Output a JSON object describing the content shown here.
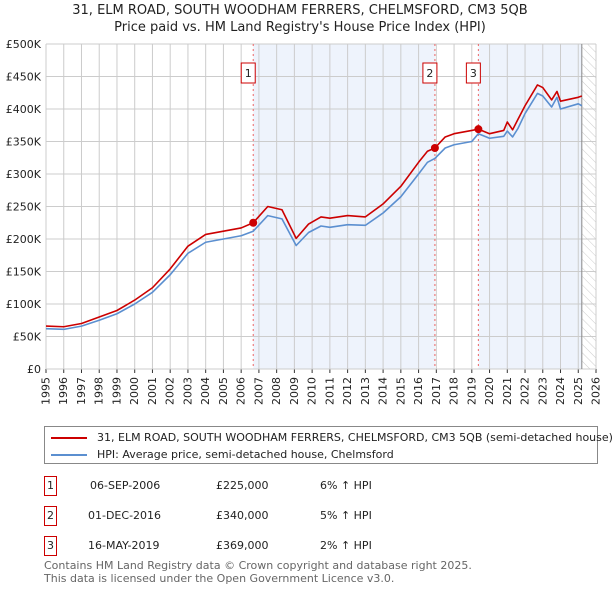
{
  "title": "31, ELM ROAD, SOUTH WOODHAM FERRERS, CHELMSFORD, CM3 5QB",
  "subtitle": "Price paid vs. HM Land Registry's House Price Index (HPI)",
  "chart_data": {
    "type": "line",
    "xlim": [
      1995,
      2026
    ],
    "ylim": [
      0,
      500000
    ],
    "x_ticks": [
      "1995",
      "1996",
      "1997",
      "1998",
      "1999",
      "2000",
      "2001",
      "2002",
      "2003",
      "2004",
      "2005",
      "2006",
      "2007",
      "2008",
      "2009",
      "2010",
      "2011",
      "2012",
      "2013",
      "2014",
      "2015",
      "2016",
      "2017",
      "2018",
      "2019",
      "2020",
      "2021",
      "2022",
      "2023",
      "2024",
      "2025",
      "2026"
    ],
    "y_ticks": [
      "£0",
      "£50K",
      "£100K",
      "£150K",
      "£200K",
      "£250K",
      "£300K",
      "£350K",
      "£400K",
      "£450K",
      "£500K"
    ],
    "grid": true,
    "shaded_ranges": [
      [
        2006.68,
        2016.92
      ],
      [
        2019.37,
        2025.2
      ]
    ],
    "hatched_from": 2025.2,
    "series": [
      {
        "name": "31, ELM ROAD, SOUTH WOODHAM FERRERS, CHELMSFORD, CM3 5QB (semi-detached house)",
        "color": "#cc0000",
        "points": [
          [
            1995,
            66000
          ],
          [
            1996,
            65000
          ],
          [
            1997,
            70000
          ],
          [
            1998,
            80000
          ],
          [
            1999,
            90000
          ],
          [
            2000,
            106000
          ],
          [
            2001,
            125000
          ],
          [
            2002,
            154000
          ],
          [
            2003,
            189000
          ],
          [
            2004,
            207000
          ],
          [
            2005,
            212000
          ],
          [
            2006,
            217000
          ],
          [
            2006.68,
            225000
          ],
          [
            2007.5,
            250000
          ],
          [
            2008.3,
            245000
          ],
          [
            2009.1,
            201000
          ],
          [
            2009.8,
            223000
          ],
          [
            2010.5,
            234000
          ],
          [
            2011,
            232000
          ],
          [
            2012,
            236000
          ],
          [
            2013,
            234000
          ],
          [
            2014,
            254000
          ],
          [
            2015,
            281000
          ],
          [
            2016,
            318000
          ],
          [
            2016.5,
            335000
          ],
          [
            2016.92,
            340000
          ],
          [
            2017.5,
            357000
          ],
          [
            2018,
            362000
          ],
          [
            2019,
            367000
          ],
          [
            2019.37,
            369000
          ],
          [
            2020,
            362000
          ],
          [
            2020.8,
            367000
          ],
          [
            2021,
            380000
          ],
          [
            2021.3,
            368000
          ],
          [
            2021.6,
            384000
          ],
          [
            2022,
            405000
          ],
          [
            2022.7,
            437000
          ],
          [
            2023,
            433000
          ],
          [
            2023.5,
            414000
          ],
          [
            2023.8,
            427000
          ],
          [
            2024,
            412000
          ],
          [
            2025,
            418000
          ],
          [
            2025.2,
            420000
          ]
        ]
      },
      {
        "name": "HPI: Average price, semi-detached house, Chelmsford",
        "color": "#5b8fd0",
        "points": [
          [
            1995,
            62000
          ],
          [
            1996,
            61000
          ],
          [
            1997,
            66000
          ],
          [
            1998,
            75000
          ],
          [
            1999,
            85000
          ],
          [
            2000,
            100000
          ],
          [
            2001,
            118000
          ],
          [
            2002,
            145000
          ],
          [
            2003,
            178000
          ],
          [
            2004,
            195000
          ],
          [
            2005,
            200000
          ],
          [
            2006,
            205000
          ],
          [
            2006.68,
            212000
          ],
          [
            2007.5,
            236000
          ],
          [
            2008.3,
            231000
          ],
          [
            2009.1,
            190000
          ],
          [
            2009.8,
            210000
          ],
          [
            2010.5,
            220000
          ],
          [
            2011,
            218000
          ],
          [
            2012,
            222000
          ],
          [
            2013,
            221000
          ],
          [
            2014,
            240000
          ],
          [
            2015,
            265000
          ],
          [
            2016,
            300000
          ],
          [
            2016.5,
            318000
          ],
          [
            2016.92,
            324000
          ],
          [
            2017.5,
            340000
          ],
          [
            2018,
            345000
          ],
          [
            2019,
            350000
          ],
          [
            2019.37,
            362000
          ],
          [
            2020,
            355000
          ],
          [
            2020.8,
            358000
          ],
          [
            2021,
            366000
          ],
          [
            2021.3,
            357000
          ],
          [
            2021.6,
            370000
          ],
          [
            2022,
            393000
          ],
          [
            2022.7,
            424000
          ],
          [
            2023,
            420000
          ],
          [
            2023.5,
            403000
          ],
          [
            2023.8,
            418000
          ],
          [
            2024,
            400000
          ],
          [
            2025,
            408000
          ],
          [
            2025.2,
            405000
          ]
        ]
      }
    ],
    "sales": [
      {
        "label": "1",
        "x": 2006.68,
        "y": 225000
      },
      {
        "label": "2",
        "x": 2016.92,
        "y": 340000
      },
      {
        "label": "3",
        "x": 2019.37,
        "y": 369000
      }
    ]
  },
  "legend": {
    "red": "31, ELM ROAD, SOUTH WOODHAM FERRERS, CHELMSFORD, CM3 5QB (semi-detached house)",
    "blue": "HPI: Average price, semi-detached house, Chelmsford"
  },
  "transactions": [
    {
      "n": "1",
      "date": "06-SEP-2006",
      "price": "£225,000",
      "hpi": "6% ↑ HPI"
    },
    {
      "n": "2",
      "date": "01-DEC-2016",
      "price": "£340,000",
      "hpi": "5% ↑ HPI"
    },
    {
      "n": "3",
      "date": "16-MAY-2019",
      "price": "£369,000",
      "hpi": "2% ↑ HPI"
    }
  ],
  "footer": [
    "Contains HM Land Registry data © Crown copyright and database right 2025.",
    "This data is licensed under the Open Government Licence v3.0."
  ]
}
